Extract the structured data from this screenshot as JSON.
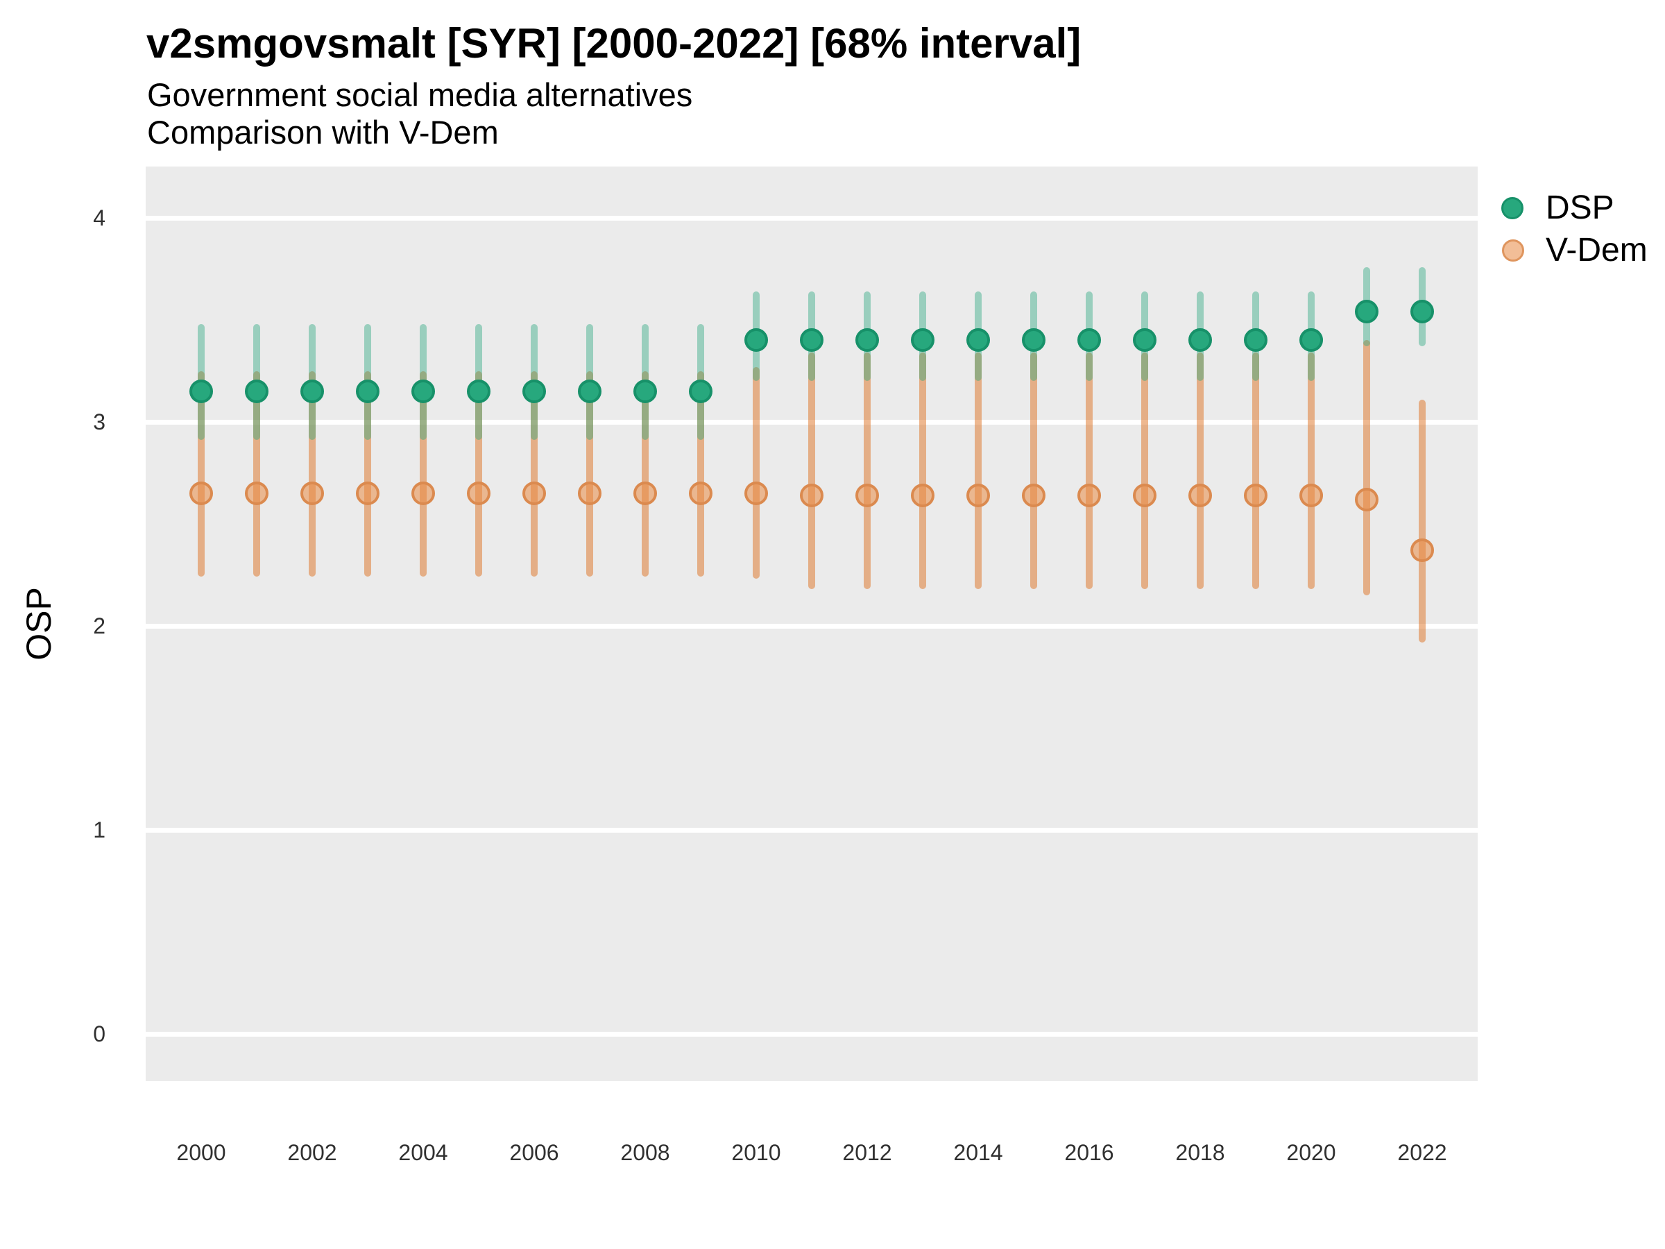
{
  "header": {
    "title": "v2smgovsmalt [SYR] [2000-2022] [68% interval]",
    "subtitle_line1": "Government social media alternatives",
    "subtitle_line2": "Comparison with V-Dem"
  },
  "axes": {
    "y_label": "OSP"
  },
  "legend": {
    "items": [
      {
        "label": "DSP"
      },
      {
        "label": "V-Dem"
      }
    ]
  },
  "colors": {
    "panel_background": "#EBEBEB",
    "gridline": "#FFFFFF",
    "dsp_point_fill": "#27A87D",
    "dsp_point_ring": "#179169",
    "dsp_bar": "rgba(41,168,126,0.42)",
    "vdem_point_fill": "rgba(233,140,69,0.55)",
    "vdem_point_ring": "#DB8A4F",
    "vdem_bar": "rgba(222,119,42,0.52)",
    "legend_vdem_fill": "#F2BE97",
    "legend_vdem_ring": "#DF955E",
    "tick_text": "#303030",
    "text": "#000000"
  },
  "chart_data": {
    "type": "scatter",
    "mark": "pointrange",
    "title": "v2smgovsmalt [SYR] [2000-2022] [68% interval]",
    "subtitle": [
      "Government social media alternatives",
      "Comparison with V-Dem"
    ],
    "interval": "68%",
    "xlabel": "",
    "ylabel": "OSP",
    "xlim": [
      1999,
      2023
    ],
    "ylim": [
      -0.23,
      4.25
    ],
    "x_tick_values": [
      2000,
      2002,
      2004,
      2006,
      2008,
      2010,
      2012,
      2014,
      2016,
      2018,
      2020,
      2022
    ],
    "y_tick_values": [
      0,
      1,
      2,
      3,
      4
    ],
    "grid": "horizontal white gridlines on gray panel",
    "legend_position": "right",
    "x": [
      2000,
      2001,
      2002,
      2003,
      2004,
      2005,
      2006,
      2007,
      2008,
      2009,
      2010,
      2011,
      2012,
      2013,
      2014,
      2015,
      2016,
      2017,
      2018,
      2019,
      2020,
      2021,
      2022
    ],
    "series": [
      {
        "name": "DSP",
        "color": "#27A87D",
        "estimate": [
          3.15,
          3.15,
          3.15,
          3.15,
          3.15,
          3.15,
          3.15,
          3.15,
          3.15,
          3.15,
          3.4,
          3.4,
          3.4,
          3.4,
          3.4,
          3.4,
          3.4,
          3.4,
          3.4,
          3.4,
          3.4,
          3.54,
          3.54
        ],
        "lower": [
          2.91,
          2.91,
          2.91,
          2.91,
          2.91,
          2.91,
          2.91,
          2.91,
          2.91,
          2.91,
          3.2,
          3.2,
          3.2,
          3.2,
          3.2,
          3.2,
          3.2,
          3.2,
          3.2,
          3.2,
          3.2,
          3.37,
          3.37
        ],
        "upper": [
          3.48,
          3.48,
          3.48,
          3.48,
          3.48,
          3.48,
          3.48,
          3.48,
          3.48,
          3.48,
          3.64,
          3.64,
          3.64,
          3.64,
          3.64,
          3.64,
          3.64,
          3.64,
          3.64,
          3.64,
          3.64,
          3.76,
          3.76
        ]
      },
      {
        "name": "V-Dem",
        "color": "#E98C45",
        "estimate": [
          2.65,
          2.65,
          2.65,
          2.65,
          2.65,
          2.65,
          2.65,
          2.65,
          2.65,
          2.65,
          2.65,
          2.64,
          2.64,
          2.64,
          2.64,
          2.64,
          2.64,
          2.64,
          2.64,
          2.64,
          2.64,
          2.62,
          2.37
        ],
        "lower": [
          2.24,
          2.24,
          2.24,
          2.24,
          2.24,
          2.24,
          2.24,
          2.24,
          2.24,
          2.24,
          2.23,
          2.18,
          2.18,
          2.18,
          2.18,
          2.18,
          2.18,
          2.18,
          2.18,
          2.18,
          2.18,
          2.15,
          1.92
        ],
        "upper": [
          3.25,
          3.25,
          3.25,
          3.25,
          3.25,
          3.25,
          3.25,
          3.25,
          3.25,
          3.25,
          3.27,
          3.34,
          3.34,
          3.34,
          3.34,
          3.34,
          3.34,
          3.34,
          3.34,
          3.34,
          3.34,
          3.4,
          3.11
        ]
      }
    ]
  }
}
